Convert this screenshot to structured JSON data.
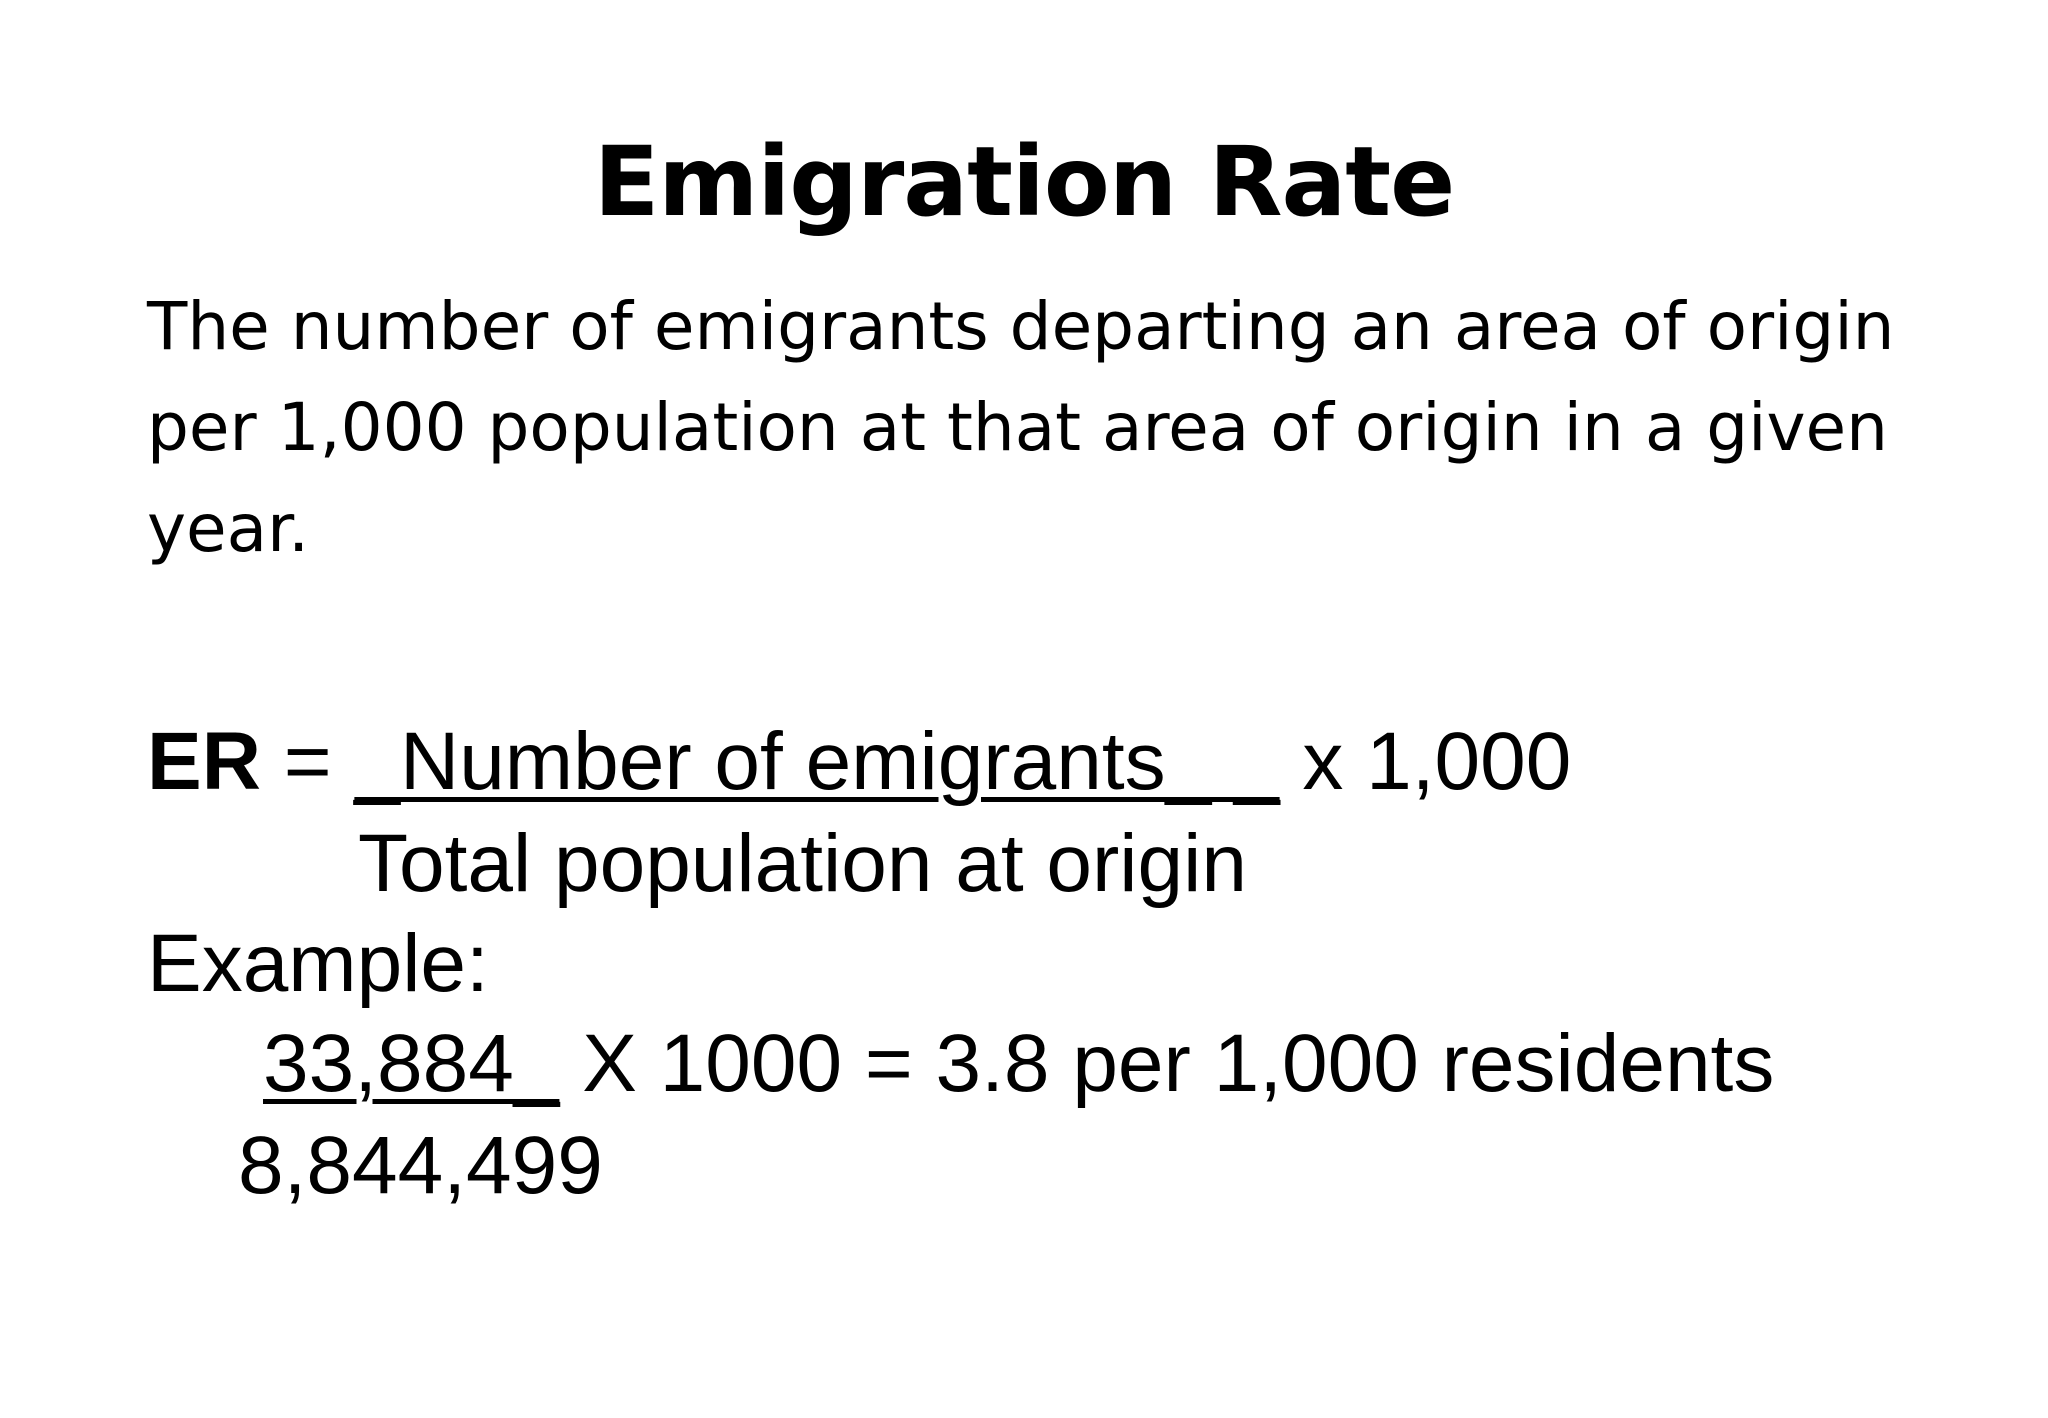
{
  "slide": {
    "title": "Emigration Rate",
    "definition_lines": [
      "The number of emigrants departing an area of origin",
      "per 1,000 population at that area of origin in a given",
      "year."
    ],
    "formula": {
      "label": "ER",
      "equals": " = ",
      "numerator": "_Number of emigrants_ ",
      "gap": "_",
      "multiplier": " x 1,000",
      "denominator": "Total population at origin"
    },
    "example": {
      "label": "Example:",
      "numerator": "33,884_",
      "rest": " X 1000 = 3.8 per 1,000 residents",
      "denominator": "8,844,499"
    }
  }
}
